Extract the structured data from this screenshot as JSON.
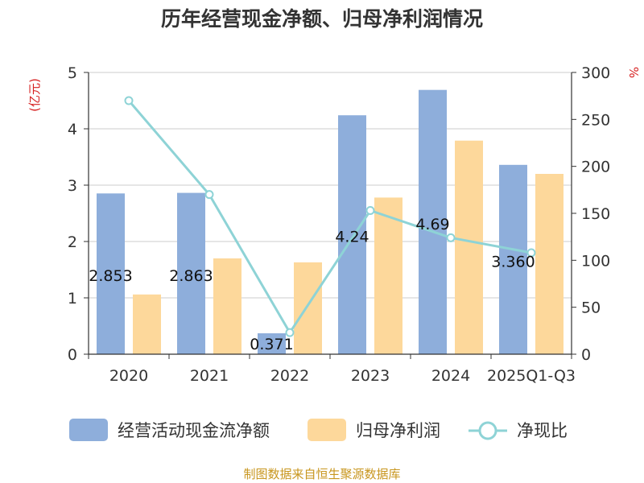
{
  "chart_data": {
    "type": "bar",
    "title": "历年经营现金净额、归母净利润情况",
    "categories": [
      "2020",
      "2021",
      "2022",
      "2023",
      "2024",
      "2025Q1-Q3"
    ],
    "y_left_unit": "(亿元)",
    "y_right_unit": "%",
    "ylim_left": [
      0,
      5
    ],
    "ylim_right": [
      0,
      300
    ],
    "y_left_ticks": [
      "0",
      "1",
      "2",
      "3",
      "4",
      "5"
    ],
    "y_right_ticks": [
      "0",
      "50",
      "100",
      "150",
      "200",
      "250",
      "300"
    ],
    "grid": true,
    "legend_position": "bottom",
    "series": [
      {
        "name": "经营活动现金流净额",
        "type": "bar",
        "axis": "left",
        "color": "#8eaedb",
        "values": [
          2.853,
          2.863,
          0.371,
          4.24,
          4.69,
          3.36
        ],
        "labels": [
          "2.853",
          "2.863",
          "0.371",
          "4.24",
          "4.69",
          "3.360"
        ]
      },
      {
        "name": "归母净利润",
        "type": "bar",
        "axis": "left",
        "color": "#fdd89b",
        "values": [
          1.06,
          1.7,
          1.63,
          2.78,
          3.79,
          3.2
        ]
      },
      {
        "name": "净现比",
        "type": "line",
        "axis": "right",
        "color": "#8ed3d6",
        "values": [
          270,
          170,
          23,
          153,
          124,
          108
        ]
      }
    ]
  },
  "source": "制图数据来自恒生聚源数据库"
}
